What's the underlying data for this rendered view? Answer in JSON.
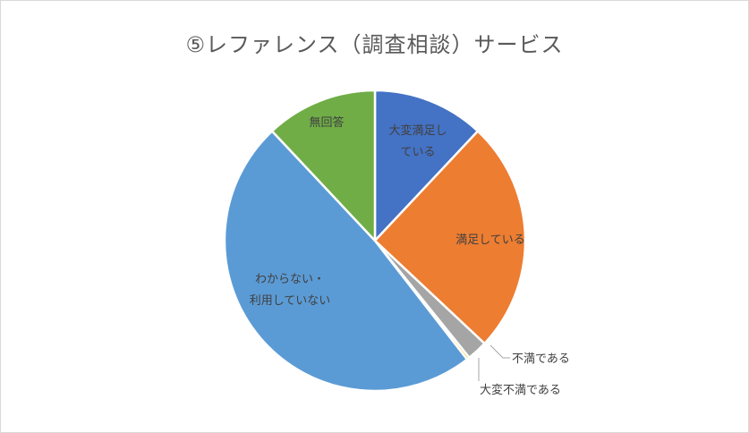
{
  "chart_data": {
    "type": "pie",
    "title": "⑤レファレンス（調査相談）サービス",
    "slices": [
      {
        "label": "大変満足している",
        "value": 12.0,
        "color": "#4472C4"
      },
      {
        "label": "満足している",
        "value": 25.0,
        "color": "#ED7D31"
      },
      {
        "label": "不満である",
        "value": 2.2,
        "color": "#A5A5A5"
      },
      {
        "label": "大変不満である",
        "value": 0.3,
        "color": "#FFC000"
      },
      {
        "label": "わからない・利用していない",
        "value": 48.5,
        "color": "#5B9BD5"
      },
      {
        "label": "無回答",
        "value": 12.0,
        "color": "#70AD47"
      }
    ],
    "legend": "none"
  }
}
